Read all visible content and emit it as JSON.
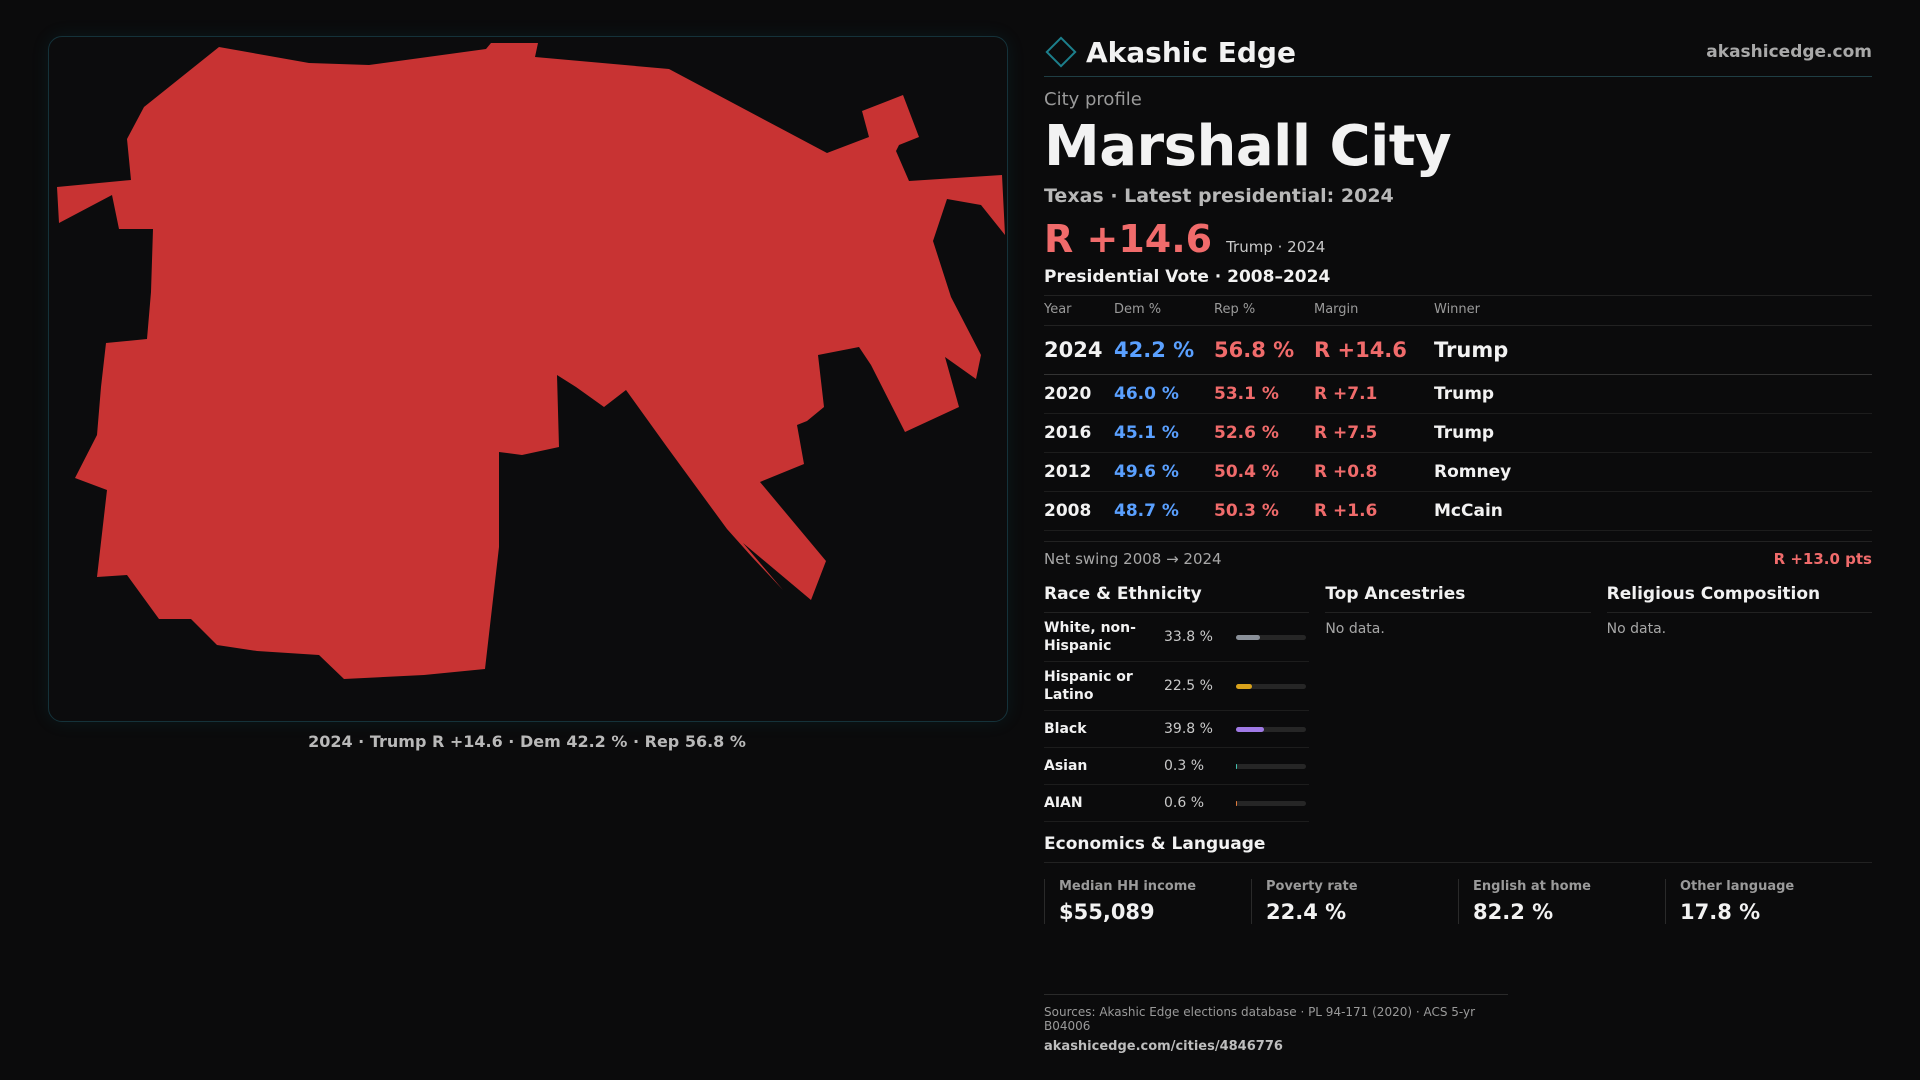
{
  "brand": {
    "name": "Akashic Edge",
    "url": "akashicedge.com"
  },
  "map": {
    "caption": "2024 · Trump R +14.6 · Dem 42.2 % · Rep 56.8 %",
    "fill_color": "#c83333"
  },
  "profile": {
    "eyebrow": "City profile",
    "title": "Marshall City",
    "subtitle": "Texas · Latest presidential: 2024",
    "headline_margin": "R +14.6",
    "headline_note": "Trump · 2024"
  },
  "votes": {
    "title": "Presidential Vote · 2008–2024",
    "columns": [
      "Year",
      "Dem %",
      "Rep %",
      "Margin",
      "Winner"
    ],
    "rows": [
      {
        "year": "2024",
        "dem": "42.2 %",
        "rep": "56.8 %",
        "margin": "R +14.6",
        "winner": "Trump"
      },
      {
        "year": "2020",
        "dem": "46.0 %",
        "rep": "53.1 %",
        "margin": "R +7.1",
        "winner": "Trump"
      },
      {
        "year": "2016",
        "dem": "45.1 %",
        "rep": "52.6 %",
        "margin": "R +7.5",
        "winner": "Trump"
      },
      {
        "year": "2012",
        "dem": "49.6 %",
        "rep": "50.4 %",
        "margin": "R +0.8",
        "winner": "Romney"
      },
      {
        "year": "2008",
        "dem": "48.7 %",
        "rep": "50.3 %",
        "margin": "R +1.6",
        "winner": "McCain"
      }
    ],
    "swing_label": "Net swing 2008 → 2024",
    "swing_value": "R +13.0 pts"
  },
  "race": {
    "title": "Race & Ethnicity",
    "rows": [
      {
        "label": "White, non-Hispanic",
        "pct": "33.8 %",
        "value": 33.8,
        "color": "#8a9099"
      },
      {
        "label": "Hispanic or Latino",
        "pct": "22.5 %",
        "value": 22.5,
        "color": "#d9a21b"
      },
      {
        "label": "Black",
        "pct": "39.8 %",
        "value": 39.8,
        "color": "#a07ae6"
      },
      {
        "label": "Asian",
        "pct": "0.3 %",
        "value": 0.3,
        "color": "#43c2b0"
      },
      {
        "label": "AIAN",
        "pct": "0.6 %",
        "value": 0.6,
        "color": "#e07a3c"
      }
    ]
  },
  "ancestry": {
    "title": "Top Ancestries",
    "empty": "No data."
  },
  "religion": {
    "title": "Religious Composition",
    "empty": "No data."
  },
  "economics": {
    "title": "Economics & Language",
    "cells": [
      {
        "label": "Median HH income",
        "value": "$55,089"
      },
      {
        "label": "Poverty rate",
        "value": "22.4 %"
      },
      {
        "label": "English at home",
        "value": "82.2 %"
      },
      {
        "label": "Other language",
        "value": "17.8 %"
      }
    ]
  },
  "footer": {
    "sources": "Sources: Akashic Edge elections database · PL 94-171 (2020) · ACS 5-yr B04006",
    "page_url": "akashicedge.com/cities/4846776"
  }
}
